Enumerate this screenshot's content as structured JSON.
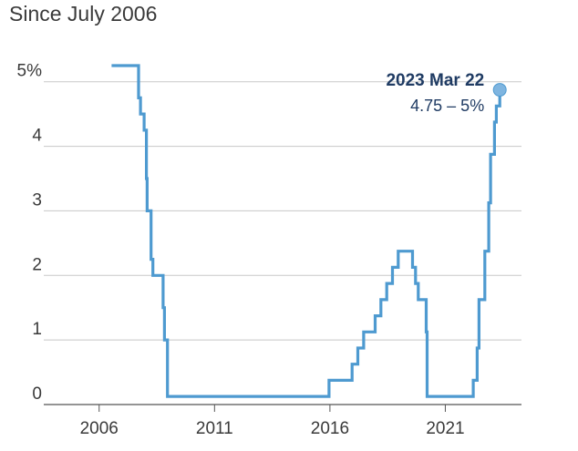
{
  "chart_data": {
    "type": "line",
    "subtitle": "Since July 2006",
    "title": "",
    "xlabel": "",
    "ylabel": "",
    "xlim": [
      2003.6,
      2024.3
    ],
    "ylim": [
      0,
      5.25
    ],
    "grid": true,
    "x_ticks": [
      {
        "value": 2006,
        "label": "2006"
      },
      {
        "value": 2011,
        "label": "2011"
      },
      {
        "value": 2016,
        "label": "2016"
      },
      {
        "value": 2021,
        "label": "2021"
      }
    ],
    "y_ticks": [
      {
        "value": 0,
        "label": "0"
      },
      {
        "value": 1,
        "label": "1"
      },
      {
        "value": 2,
        "label": "2"
      },
      {
        "value": 3,
        "label": "3"
      },
      {
        "value": 4,
        "label": "4"
      },
      {
        "value": 5,
        "label": "5%"
      }
    ],
    "series": [
      {
        "color": "#4e9ad0",
        "step": true,
        "points": [
          [
            2006.54,
            5.25
          ],
          [
            2007.71,
            4.75
          ],
          [
            2007.79,
            4.5
          ],
          [
            2007.95,
            4.25
          ],
          [
            2008.05,
            3.5
          ],
          [
            2008.08,
            3.0
          ],
          [
            2008.25,
            2.25
          ],
          [
            2008.33,
            2.0
          ],
          [
            2008.77,
            1.5
          ],
          [
            2008.83,
            1.0
          ],
          [
            2008.96,
            0.125
          ],
          [
            2015.96,
            0.375
          ],
          [
            2016.96,
            0.625
          ],
          [
            2017.21,
            0.875
          ],
          [
            2017.46,
            1.125
          ],
          [
            2017.96,
            1.375
          ],
          [
            2018.21,
            1.625
          ],
          [
            2018.46,
            1.875
          ],
          [
            2018.71,
            2.125
          ],
          [
            2018.96,
            2.375
          ],
          [
            2019.58,
            2.125
          ],
          [
            2019.71,
            1.875
          ],
          [
            2019.83,
            1.625
          ],
          [
            2020.17,
            1.125
          ],
          [
            2020.21,
            0.125
          ],
          [
            2022.21,
            0.375
          ],
          [
            2022.38,
            0.875
          ],
          [
            2022.46,
            1.625
          ],
          [
            2022.71,
            2.375
          ],
          [
            2022.88,
            3.125
          ],
          [
            2022.96,
            3.875
          ],
          [
            2023.13,
            4.375
          ],
          [
            2023.21,
            4.625
          ],
          [
            2023.36,
            4.875
          ]
        ]
      }
    ],
    "annotation": {
      "date": "2023 Mar 22",
      "value": "4.75 – 5%",
      "x": 2023.36,
      "y": 4.875
    }
  }
}
